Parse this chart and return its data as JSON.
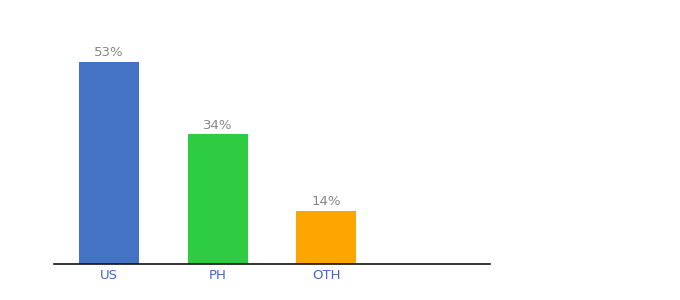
{
  "categories": [
    "US",
    "PH",
    "OTH"
  ],
  "values": [
    53,
    34,
    14
  ],
  "bar_colors": [
    "#4472C4",
    "#2ECC40",
    "#FFA500"
  ],
  "labels": [
    "53%",
    "34%",
    "14%"
  ],
  "background_color": "#ffffff",
  "label_color": "#888888",
  "axis_line_color": "#111111",
  "tick_color": "#4466cc",
  "bar_width": 0.55,
  "ylim": [
    0,
    63
  ],
  "label_fontsize": 9.5,
  "tick_fontsize": 9.5,
  "xlim": [
    -0.5,
    3.5
  ]
}
